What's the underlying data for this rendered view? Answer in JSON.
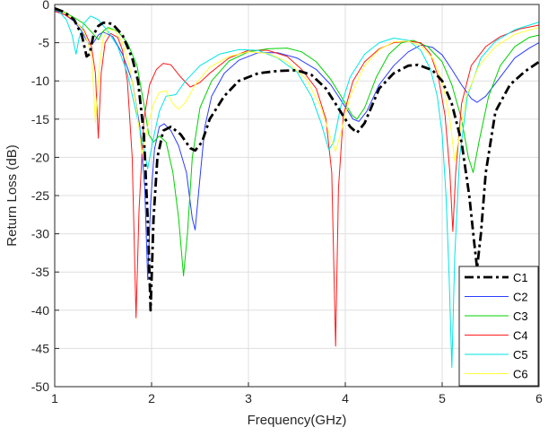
{
  "chart_data": {
    "type": "line",
    "title": "",
    "xlabel": "Frequency(GHz)",
    "ylabel": "Return Loss (dB)",
    "xlim": [
      1,
      6
    ],
    "ylim": [
      -50,
      0
    ],
    "xticks": [
      1,
      2,
      3,
      4,
      5,
      6
    ],
    "yticks": [
      0,
      -5,
      -10,
      -15,
      -20,
      -25,
      -30,
      -35,
      -40,
      -45,
      -50
    ],
    "grid": true,
    "legend_position": "bottom-right",
    "series": [
      {
        "name": "C1",
        "color": "#000000",
        "dash": "dashdot",
        "points": [
          [
            1.0,
            -0.5
          ],
          [
            1.1,
            -1.0
          ],
          [
            1.2,
            -2.0
          ],
          [
            1.28,
            -4.0
          ],
          [
            1.33,
            -6.8
          ],
          [
            1.36,
            -6.5
          ],
          [
            1.4,
            -4.0
          ],
          [
            1.45,
            -2.8
          ],
          [
            1.5,
            -2.4
          ],
          [
            1.55,
            -2.4
          ],
          [
            1.6,
            -2.6
          ],
          [
            1.7,
            -4.0
          ],
          [
            1.8,
            -7.0
          ],
          [
            1.86,
            -10.0
          ],
          [
            1.92,
            -17.0
          ],
          [
            1.96,
            -28.0
          ],
          [
            1.99,
            -40.0
          ],
          [
            2.02,
            -28.0
          ],
          [
            2.06,
            -20.0
          ],
          [
            2.12,
            -16.5
          ],
          [
            2.2,
            -16.0
          ],
          [
            2.3,
            -17.0
          ],
          [
            2.4,
            -18.8
          ],
          [
            2.45,
            -19.1
          ],
          [
            2.52,
            -18.0
          ],
          [
            2.6,
            -15.0
          ],
          [
            2.75,
            -12.0
          ],
          [
            2.9,
            -10.0
          ],
          [
            3.1,
            -9.0
          ],
          [
            3.3,
            -8.7
          ],
          [
            3.5,
            -8.6
          ],
          [
            3.65,
            -9.2
          ],
          [
            3.8,
            -11.0
          ],
          [
            3.95,
            -14.0
          ],
          [
            4.05,
            -16.0
          ],
          [
            4.12,
            -16.8
          ],
          [
            4.2,
            -15.5
          ],
          [
            4.35,
            -11.0
          ],
          [
            4.5,
            -9.0
          ],
          [
            4.65,
            -8.0
          ],
          [
            4.75,
            -7.9
          ],
          [
            4.9,
            -8.6
          ],
          [
            5.0,
            -10.0
          ],
          [
            5.1,
            -13.0
          ],
          [
            5.2,
            -18.0
          ],
          [
            5.28,
            -25.0
          ],
          [
            5.33,
            -31.0
          ],
          [
            5.36,
            -34.5
          ],
          [
            5.4,
            -30.0
          ],
          [
            5.45,
            -22.0
          ],
          [
            5.55,
            -14.0
          ],
          [
            5.7,
            -10.5
          ],
          [
            5.85,
            -8.8
          ],
          [
            6.0,
            -7.5
          ]
        ]
      },
      {
        "name": "C2",
        "color": "#2a3dff",
        "dash": "solid",
        "points": [
          [
            1.0,
            -0.8
          ],
          [
            1.1,
            -1.3
          ],
          [
            1.2,
            -2.2
          ],
          [
            1.28,
            -3.5
          ],
          [
            1.35,
            -5.2
          ],
          [
            1.4,
            -5.0
          ],
          [
            1.45,
            -4.0
          ],
          [
            1.5,
            -3.6
          ],
          [
            1.6,
            -4.2
          ],
          [
            1.7,
            -6.5
          ],
          [
            1.8,
            -10.0
          ],
          [
            1.88,
            -16.0
          ],
          [
            1.93,
            -24.0
          ],
          [
            1.96,
            -36.0
          ],
          [
            1.99,
            -26.0
          ],
          [
            2.03,
            -19.0
          ],
          [
            2.08,
            -16.0
          ],
          [
            2.13,
            -15.6
          ],
          [
            2.2,
            -16.5
          ],
          [
            2.28,
            -18.5
          ],
          [
            2.36,
            -22.0
          ],
          [
            2.42,
            -28.0
          ],
          [
            2.45,
            -29.5
          ],
          [
            2.49,
            -24.0
          ],
          [
            2.55,
            -16.0
          ],
          [
            2.62,
            -12.0
          ],
          [
            2.75,
            -9.0
          ],
          [
            2.9,
            -7.3
          ],
          [
            3.1,
            -6.3
          ],
          [
            3.3,
            -6.3
          ],
          [
            3.5,
            -7.0
          ],
          [
            3.7,
            -8.5
          ],
          [
            3.85,
            -10.5
          ],
          [
            3.98,
            -13.0
          ],
          [
            4.08,
            -15.0
          ],
          [
            4.14,
            -15.3
          ],
          [
            4.22,
            -14.0
          ],
          [
            4.35,
            -10.5
          ],
          [
            4.5,
            -8.0
          ],
          [
            4.65,
            -6.2
          ],
          [
            4.78,
            -5.3
          ],
          [
            4.9,
            -5.6
          ],
          [
            5.0,
            -6.6
          ],
          [
            5.1,
            -8.5
          ],
          [
            5.2,
            -10.5
          ],
          [
            5.3,
            -12.3
          ],
          [
            5.36,
            -12.8
          ],
          [
            5.45,
            -12.0
          ],
          [
            5.6,
            -9.5
          ],
          [
            5.75,
            -7.0
          ],
          [
            5.9,
            -5.7
          ],
          [
            6.0,
            -5.0
          ]
        ]
      },
      {
        "name": "C3",
        "color": "#00d200",
        "dash": "solid",
        "points": [
          [
            1.0,
            -0.7
          ],
          [
            1.1,
            -1.0
          ],
          [
            1.2,
            -1.7
          ],
          [
            1.3,
            -2.5
          ],
          [
            1.38,
            -3.6
          ],
          [
            1.45,
            -4.6
          ],
          [
            1.5,
            -3.5
          ],
          [
            1.55,
            -3.0
          ],
          [
            1.65,
            -3.5
          ],
          [
            1.75,
            -5.0
          ],
          [
            1.85,
            -8.0
          ],
          [
            1.92,
            -13.0
          ],
          [
            1.97,
            -17.0
          ],
          [
            2.02,
            -18.0
          ],
          [
            2.08,
            -17.2
          ],
          [
            2.15,
            -18.0
          ],
          [
            2.22,
            -22.0
          ],
          [
            2.28,
            -28.0
          ],
          [
            2.33,
            -35.5
          ],
          [
            2.37,
            -30.0
          ],
          [
            2.42,
            -20.0
          ],
          [
            2.5,
            -13.5
          ],
          [
            2.62,
            -10.0
          ],
          [
            2.8,
            -7.4
          ],
          [
            3.0,
            -6.2
          ],
          [
            3.2,
            -5.8
          ],
          [
            3.4,
            -5.7
          ],
          [
            3.55,
            -6.2
          ],
          [
            3.7,
            -7.5
          ],
          [
            3.85,
            -9.8
          ],
          [
            3.98,
            -12.5
          ],
          [
            4.07,
            -14.5
          ],
          [
            4.12,
            -15.0
          ],
          [
            4.2,
            -13.5
          ],
          [
            4.32,
            -9.5
          ],
          [
            4.45,
            -6.5
          ],
          [
            4.58,
            -5.0
          ],
          [
            4.7,
            -4.7
          ],
          [
            4.85,
            -5.5
          ],
          [
            5.0,
            -7.5
          ],
          [
            5.1,
            -10.5
          ],
          [
            5.2,
            -15.0
          ],
          [
            5.27,
            -20.0
          ],
          [
            5.32,
            -22.0
          ],
          [
            5.38,
            -18.0
          ],
          [
            5.48,
            -12.0
          ],
          [
            5.6,
            -8.0
          ],
          [
            5.75,
            -5.5
          ],
          [
            5.9,
            -4.3
          ],
          [
            6.0,
            -4.0
          ]
        ]
      },
      {
        "name": "C4",
        "color": "#ff1a1a",
        "dash": "solid",
        "points": [
          [
            1.0,
            -0.9
          ],
          [
            1.1,
            -1.3
          ],
          [
            1.2,
            -2.1
          ],
          [
            1.3,
            -3.3
          ],
          [
            1.38,
            -5.5
          ],
          [
            1.42,
            -9.0
          ],
          [
            1.45,
            -17.5
          ],
          [
            1.48,
            -9.0
          ],
          [
            1.52,
            -5.0
          ],
          [
            1.58,
            -3.8
          ],
          [
            1.65,
            -4.3
          ],
          [
            1.7,
            -6.0
          ],
          [
            1.75,
            -10.0
          ],
          [
            1.8,
            -20.0
          ],
          [
            1.84,
            -41.0
          ],
          [
            1.87,
            -27.0
          ],
          [
            1.92,
            -15.0
          ],
          [
            1.98,
            -10.5
          ],
          [
            2.05,
            -8.5
          ],
          [
            2.12,
            -7.7
          ],
          [
            2.2,
            -7.9
          ],
          [
            2.3,
            -9.5
          ],
          [
            2.4,
            -10.8
          ],
          [
            2.5,
            -10.2
          ],
          [
            2.6,
            -9.0
          ],
          [
            2.8,
            -7.0
          ],
          [
            3.0,
            -6.0
          ],
          [
            3.2,
            -6.0
          ],
          [
            3.4,
            -6.8
          ],
          [
            3.55,
            -8.5
          ],
          [
            3.7,
            -11.0
          ],
          [
            3.8,
            -15.0
          ],
          [
            3.86,
            -22.0
          ],
          [
            3.9,
            -44.7
          ],
          [
            3.93,
            -24.0
          ],
          [
            3.98,
            -14.5
          ],
          [
            4.08,
            -10.0
          ],
          [
            4.2,
            -7.5
          ],
          [
            4.35,
            -5.8
          ],
          [
            4.5,
            -5.0
          ],
          [
            4.65,
            -4.8
          ],
          [
            4.78,
            -5.0
          ],
          [
            4.88,
            -6.5
          ],
          [
            4.96,
            -9.5
          ],
          [
            5.03,
            -14.5
          ],
          [
            5.08,
            -22.0
          ],
          [
            5.11,
            -29.7
          ],
          [
            5.14,
            -22.0
          ],
          [
            5.2,
            -13.0
          ],
          [
            5.3,
            -8.0
          ],
          [
            5.45,
            -5.5
          ],
          [
            5.6,
            -4.2
          ],
          [
            5.8,
            -3.2
          ],
          [
            6.0,
            -2.7
          ]
        ]
      },
      {
        "name": "C5",
        "color": "#00e6e6",
        "dash": "solid",
        "points": [
          [
            1.0,
            -0.5
          ],
          [
            1.05,
            -1.0
          ],
          [
            1.12,
            -2.0
          ],
          [
            1.18,
            -4.0
          ],
          [
            1.22,
            -6.5
          ],
          [
            1.25,
            -4.5
          ],
          [
            1.3,
            -2.5
          ],
          [
            1.37,
            -1.5
          ],
          [
            1.45,
            -2.0
          ],
          [
            1.55,
            -3.5
          ],
          [
            1.65,
            -5.5
          ],
          [
            1.75,
            -9.0
          ],
          [
            1.83,
            -13.5
          ],
          [
            1.9,
            -17.5
          ],
          [
            1.96,
            -21.5
          ],
          [
            2.01,
            -18.0
          ],
          [
            2.08,
            -14.0
          ],
          [
            2.15,
            -12.0
          ],
          [
            2.25,
            -11.8
          ],
          [
            2.35,
            -10.0
          ],
          [
            2.5,
            -8.0
          ],
          [
            2.7,
            -6.5
          ],
          [
            2.9,
            -5.9
          ],
          [
            3.1,
            -6.0
          ],
          [
            3.3,
            -7.0
          ],
          [
            3.5,
            -8.8
          ],
          [
            3.65,
            -12.0
          ],
          [
            3.75,
            -15.5
          ],
          [
            3.83,
            -19.0
          ],
          [
            3.88,
            -18.0
          ],
          [
            3.95,
            -13.5
          ],
          [
            4.05,
            -9.5
          ],
          [
            4.2,
            -6.5
          ],
          [
            4.35,
            -5.0
          ],
          [
            4.5,
            -4.4
          ],
          [
            4.65,
            -4.7
          ],
          [
            4.78,
            -6.0
          ],
          [
            4.88,
            -8.5
          ],
          [
            4.95,
            -12.0
          ],
          [
            5.0,
            -17.0
          ],
          [
            5.04,
            -25.0
          ],
          [
            5.07,
            -35.0
          ],
          [
            5.1,
            -47.5
          ],
          [
            5.13,
            -33.0
          ],
          [
            5.18,
            -20.0
          ],
          [
            5.26,
            -12.0
          ],
          [
            5.4,
            -7.0
          ],
          [
            5.55,
            -4.8
          ],
          [
            5.75,
            -3.3
          ],
          [
            6.0,
            -2.3
          ]
        ]
      },
      {
        "name": "C6",
        "color": "#ffff3a",
        "dash": "solid",
        "points": [
          [
            1.0,
            -0.6
          ],
          [
            1.1,
            -1.1
          ],
          [
            1.2,
            -2.0
          ],
          [
            1.3,
            -3.5
          ],
          [
            1.38,
            -6.5
          ],
          [
            1.42,
            -15.5
          ],
          [
            1.46,
            -8.0
          ],
          [
            1.5,
            -4.5
          ],
          [
            1.55,
            -3.2
          ],
          [
            1.62,
            -3.4
          ],
          [
            1.7,
            -5.0
          ],
          [
            1.78,
            -8.5
          ],
          [
            1.85,
            -14.0
          ],
          [
            1.9,
            -19.5
          ],
          [
            1.96,
            -16.0
          ],
          [
            2.02,
            -13.0
          ],
          [
            2.08,
            -11.5
          ],
          [
            2.15,
            -11.3
          ],
          [
            2.22,
            -13.0
          ],
          [
            2.28,
            -13.7
          ],
          [
            2.35,
            -12.8
          ],
          [
            2.45,
            -10.5
          ],
          [
            2.6,
            -8.2
          ],
          [
            2.8,
            -6.8
          ],
          [
            3.0,
            -6.2
          ],
          [
            3.2,
            -6.4
          ],
          [
            3.4,
            -7.5
          ],
          [
            3.6,
            -9.8
          ],
          [
            3.75,
            -13.5
          ],
          [
            3.85,
            -17.5
          ],
          [
            3.9,
            -19.2
          ],
          [
            3.96,
            -16.5
          ],
          [
            4.05,
            -12.0
          ],
          [
            4.2,
            -8.0
          ],
          [
            4.35,
            -5.9
          ],
          [
            4.5,
            -4.9
          ],
          [
            4.65,
            -4.8
          ],
          [
            4.78,
            -5.4
          ],
          [
            4.9,
            -7.0
          ],
          [
            5.0,
            -10.0
          ],
          [
            5.08,
            -15.0
          ],
          [
            5.13,
            -20.5
          ],
          [
            5.18,
            -17.0
          ],
          [
            5.25,
            -12.0
          ],
          [
            5.38,
            -8.0
          ],
          [
            5.55,
            -5.5
          ],
          [
            5.75,
            -3.9
          ],
          [
            6.0,
            -3.0
          ]
        ]
      }
    ]
  }
}
